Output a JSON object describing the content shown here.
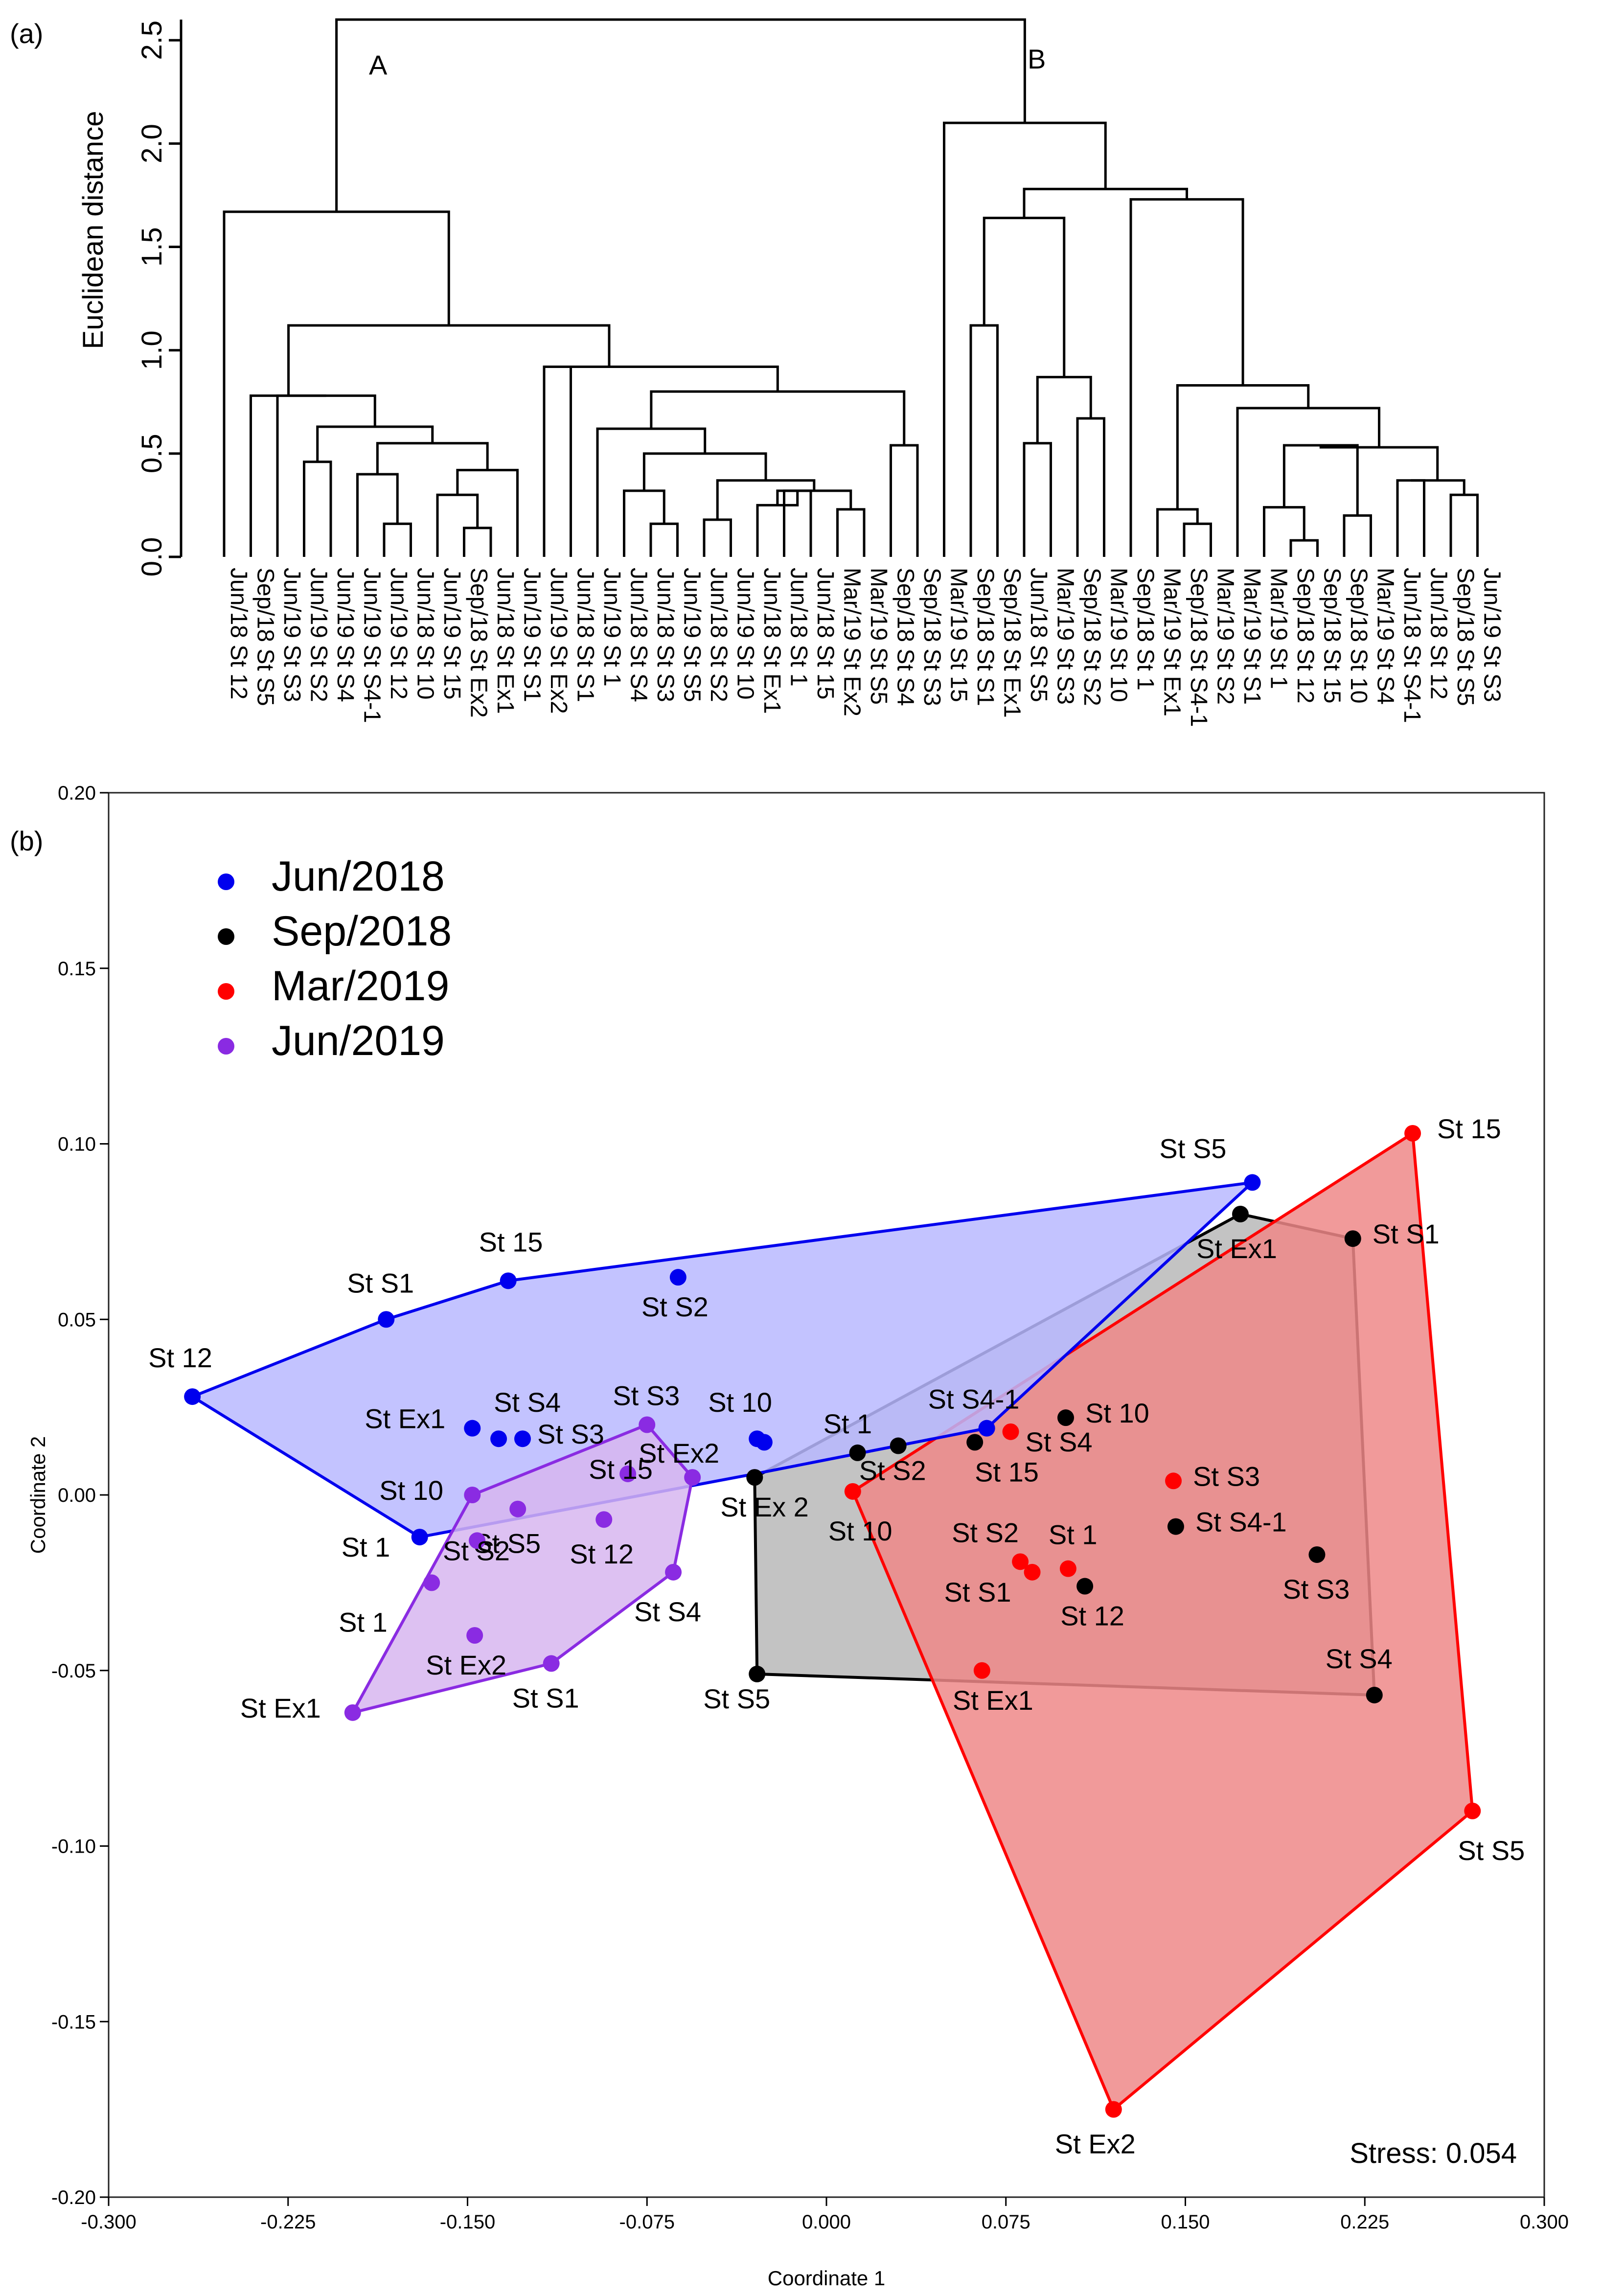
{
  "chart_data": [
    {
      "type": "dendrogram",
      "panel_label": "(a)",
      "ylabel": "Euclidean distance",
      "ylim": [
        0,
        2.6
      ],
      "y_ticks": [
        "0.0",
        "0.5",
        "1.0",
        "1.5",
        "2.0",
        "2.5"
      ],
      "y_tick_values": [
        0,
        0.5,
        1.0,
        1.5,
        2.0,
        2.5
      ],
      "cluster_labels": [
        "A",
        "B"
      ],
      "leaves": [
        "Jun/18 St 12",
        "Sep/18 St S5",
        "Jun/19 St S3",
        "Jun/19 St S2",
        "Jun/19 St S4",
        "Jun/19 St S4-1",
        "Jun/19 St 12",
        "Jun/18 St 10",
        "Jun/19 St 15",
        "Sep/18 St Ex2",
        "Jun/18 St Ex1",
        "Jun/19 St S1",
        "Jun/19 St Ex2",
        "Jun/18 St S1",
        "Jun/19 St 1",
        "Jun/18 St S4",
        "Jun/18 St S3",
        "Jun/19 St S5",
        "Jun/18 St S2",
        "Jun/19 St 10",
        "Jun/18 St Ex1",
        "Jun/18 St 1",
        "Jun/18 St 15",
        "Mar/19 St Ex2",
        "Mar/19 St S5",
        "Sep/18 St S4",
        "Sep/18 St S3",
        "Mar/19 St 15",
        "Sep/18 St S1",
        "Sep/18 St Ex1",
        "Jun/18 St S5",
        "Mar/19 St S3",
        "Sep/18 St S2",
        "Mar/19 St 10",
        "Sep/18 St 1",
        "Mar/19 St Ex1",
        "Sep/18 St S4-1",
        "Mar/19 St S2",
        "Mar/19 St S1",
        "Mar/19 St 1",
        "Sep/18 St 12",
        "Sep/18 St 15",
        "Sep/18 St 10",
        "Mar/19 St S4",
        "Jun/18 St S4-1"
      ],
      "merges": [
        {
          "a": "L6",
          "b": "L7",
          "h": 0.16
        },
        {
          "a": "L5",
          "b": "N1",
          "h": 0.4
        },
        {
          "a": "L9",
          "b": "L10",
          "h": 0.14
        },
        {
          "a": "L8",
          "b": "N3",
          "h": 0.3
        },
        {
          "a": "L7c",
          "b": "N4",
          "h": 0.42
        },
        {
          "a": "N2",
          "b": "N5",
          "h": 0.55
        },
        {
          "a": "L3",
          "b": "L4",
          "h": 0.46
        },
        {
          "a": "N7",
          "b": "N6",
          "h": 0.63
        },
        {
          "a": "L2",
          "b": "N8",
          "h": 0.78
        },
        {
          "a": "L1",
          "b": "N9",
          "h": 0.78
        },
        {
          "a": "L14",
          "b": "L15",
          "h": 0.16
        },
        {
          "a": "L13",
          "b": "N11",
          "h": 0.32
        },
        {
          "a": "L16",
          "b": "L17",
          "h": 0.18
        },
        {
          "a": "L19",
          "b": "L20",
          "h": 0.32
        },
        {
          "a": "L18",
          "b": "N14",
          "h": 0.25
        },
        {
          "a": "L21",
          "b": "L22",
          "h": 0.23
        },
        {
          "a": "N15",
          "b": "N16",
          "h": 0.32
        },
        {
          "a": "N13",
          "b": "N17",
          "h": 0.37
        },
        {
          "a": "N12",
          "b": "N18",
          "h": 0.5
        },
        {
          "a": "L12",
          "b": "N19",
          "h": 0.62
        },
        {
          "a": "L23",
          "b": "L24",
          "h": 0.54
        },
        {
          "a": "N20",
          "b": "N21",
          "h": 0.8
        },
        {
          "a": "N20b",
          "b": "N22",
          "h": 0.92
        },
        {
          "a": "L11",
          "b": "N23",
          "h": 0.92
        },
        {
          "a": "N10",
          "b": "N24",
          "h": 1.12
        },
        {
          "a": "L0",
          "b": "N25",
          "h": 1.67
        },
        {
          "a": "L26",
          "b": "L27",
          "h": 1.12
        },
        {
          "a": "L28",
          "b": "L29",
          "h": 0.55
        },
        {
          "a": "L30",
          "b": "L31",
          "h": 0.67
        },
        {
          "a": "N28",
          "b": "N29",
          "h": 0.87
        },
        {
          "a": "N27",
          "b": "N30",
          "h": 1.64
        },
        {
          "a": "L32",
          "b": "L33",
          "h": 1.73
        },
        {
          "a": "L34",
          "b": "L35",
          "h": 0.16
        },
        {
          "a": "L33b",
          "b": "N33",
          "h": 0.23
        },
        {
          "a": "L38",
          "b": "L39",
          "h": 0.08
        },
        {
          "a": "L37",
          "b": "N35",
          "h": 0.24
        },
        {
          "a": "L40",
          "b": "L41",
          "h": 0.2
        },
        {
          "a": "N36",
          "b": "N37",
          "h": 0.54
        },
        {
          "a": "L42",
          "b": "L43",
          "h": 0.37
        },
        {
          "a": "L45",
          "b": "L46",
          "h": 0.17
        },
        {
          "a": "L44",
          "b": "N40",
          "h": 0.3
        },
        {
          "a": "N39",
          "b": "N41",
          "h": 0.37
        },
        {
          "a": "N38",
          "b": "N42",
          "h": 0.53
        },
        {
          "a": "L36",
          "b": "N43",
          "h": 0.72
        },
        {
          "a": "N34",
          "b": "N44",
          "h": 0.83
        },
        {
          "a": "N32",
          "b": "N45",
          "h": 1.73
        },
        {
          "a": "N31",
          "b": "N46",
          "h": 1.78
        },
        {
          "a": "L25",
          "b": "N47",
          "h": 2.1
        },
        {
          "a": "A",
          "b": "B",
          "h": 2.6
        }
      ]
    },
    {
      "type": "scatter",
      "panel_label": "(b)",
      "xlabel": "Coordinate 1",
      "ylabel": "Coordinate 2",
      "xlim": [
        -0.3,
        0.3
      ],
      "ylim": [
        -0.2,
        0.2
      ],
      "x_ticks": [
        "-0.300",
        "-0.225",
        "-0.150",
        "-0.075",
        "0.000",
        "0.075",
        "0.150",
        "0.225",
        "0.300"
      ],
      "x_tick_values": [
        -0.3,
        -0.225,
        -0.15,
        -0.075,
        0,
        0.075,
        0.15,
        0.225,
        0.3
      ],
      "y_ticks": [
        "0.20",
        "0.15",
        "0.10",
        "0.05",
        "0.00",
        "-0.05",
        "-0.10",
        "-0.15",
        "-0.20"
      ],
      "y_tick_values": [
        0.2,
        0.15,
        0.1,
        0.05,
        0,
        -0.05,
        -0.1,
        -0.15,
        -0.2
      ],
      "annotation": "Stress: 0.054",
      "legend_position": "top-left",
      "series": [
        {
          "name": "Jun/2018",
          "color": "#0000ee",
          "fill": "#b8b8ff",
          "points": [
            {
              "label": "St 12",
              "x": -0.265,
              "y": 0.028
            },
            {
              "label": "St S1",
              "x": -0.184,
              "y": 0.05
            },
            {
              "label": "St 15",
              "x": -0.133,
              "y": 0.061
            },
            {
              "label": "St S2",
              "x": -0.062,
              "y": 0.062
            },
            {
              "label": "St Ex1",
              "x": -0.148,
              "y": 0.019
            },
            {
              "label": "St S4",
              "x": -0.137,
              "y": 0.016
            },
            {
              "label": "St S3",
              "x": -0.127,
              "y": 0.016
            },
            {
              "label": "St 10",
              "x": -0.029,
              "y": 0.016
            },
            {
              "label": "",
              "x": -0.026,
              "y": 0.015
            },
            {
              "label": "St 1",
              "x": -0.17,
              "y": -0.012
            },
            {
              "label": "St S4-1",
              "x": 0.067,
              "y": 0.019
            },
            {
              "label": "St S5",
              "x": 0.178,
              "y": 0.089
            }
          ],
          "hull": [
            [
              -0.265,
              0.028
            ],
            [
              -0.184,
              0.05
            ],
            [
              -0.133,
              0.061
            ],
            [
              0.178,
              0.089
            ],
            [
              0.067,
              0.019
            ],
            [
              -0.03,
              0.006
            ],
            [
              -0.17,
              -0.012
            ]
          ]
        },
        {
          "name": "Sep/2018",
          "color": "#000000",
          "fill": "#b9b9b9",
          "points": [
            {
              "label": "St Ex1",
              "x": 0.173,
              "y": 0.08
            },
            {
              "label": "St S1",
              "x": 0.22,
              "y": 0.073
            },
            {
              "label": "St 10",
              "x": 0.1,
              "y": 0.022
            },
            {
              "label": "St S4-1",
              "x": 0.146,
              "y": -0.009
            },
            {
              "label": "St S3",
              "x": 0.205,
              "y": -0.017
            },
            {
              "label": "St 12",
              "x": 0.108,
              "y": -0.026
            },
            {
              "label": "St S4",
              "x": 0.229,
              "y": -0.057
            },
            {
              "label": "St 1",
              "x": 0.013,
              "y": 0.012
            },
            {
              "label": "St S2",
              "x": 0.03,
              "y": 0.014
            },
            {
              "label": "St 15",
              "x": 0.062,
              "y": 0.015
            },
            {
              "label": "St Ex 2",
              "x": -0.03,
              "y": 0.005
            },
            {
              "label": "St S5",
              "x": -0.029,
              "y": -0.051
            }
          ],
          "hull": [
            [
              -0.03,
              0.005
            ],
            [
              0.173,
              0.08
            ],
            [
              0.22,
              0.073
            ],
            [
              0.229,
              -0.057
            ],
            [
              -0.029,
              -0.051
            ]
          ]
        },
        {
          "name": "Mar/2019",
          "color": "#ff0000",
          "fill": "#ee8888",
          "points": [
            {
              "label": "St 15",
              "x": 0.245,
              "y": 0.103
            },
            {
              "label": "St S4",
              "x": 0.077,
              "y": 0.018
            },
            {
              "label": "St S3",
              "x": 0.145,
              "y": 0.004
            },
            {
              "label": "St 10",
              "x": 0.011,
              "y": 0.001
            },
            {
              "label": "St S2",
              "x": 0.081,
              "y": -0.019
            },
            {
              "label": "St S1",
              "x": 0.086,
              "y": -0.022
            },
            {
              "label": "St 1",
              "x": 0.101,
              "y": -0.021
            },
            {
              "label": "St Ex1",
              "x": 0.065,
              "y": -0.05
            },
            {
              "label": "St S5",
              "x": 0.27,
              "y": -0.09
            },
            {
              "label": "St Ex2",
              "x": 0.12,
              "y": -0.175
            }
          ],
          "hull": [
            [
              0.011,
              0.001
            ],
            [
              0.245,
              0.103
            ],
            [
              0.27,
              -0.09
            ],
            [
              0.12,
              -0.175
            ]
          ]
        },
        {
          "name": "Jun/2019",
          "color": "#8a2be2",
          "fill": "#d7b6f0",
          "points": [
            {
              "label": "St S3",
              "x": -0.075,
              "y": 0.02
            },
            {
              "label": "St Ex2",
              "x": -0.056,
              "y": 0.005
            },
            {
              "label": "St 15",
              "x": -0.083,
              "y": 0.006
            },
            {
              "label": "St 10",
              "x": -0.148,
              "y": 0.0
            },
            {
              "label": "St S5",
              "x": -0.129,
              "y": -0.004
            },
            {
              "label": "St S2",
              "x": -0.146,
              "y": -0.013
            },
            {
              "label": "St 12",
              "x": -0.093,
              "y": -0.007
            },
            {
              "label": "St 1",
              "x": -0.165,
              "y": -0.025
            },
            {
              "label": "St S4",
              "x": -0.064,
              "y": -0.022
            },
            {
              "label": "St Ex2",
              "x": -0.147,
              "y": -0.04
            },
            {
              "label": "St S1",
              "x": -0.115,
              "y": -0.048
            },
            {
              "label": "St Ex1",
              "x": -0.198,
              "y": -0.062
            }
          ],
          "hull": [
            [
              -0.148,
              0.0
            ],
            [
              -0.075,
              0.02
            ],
            [
              -0.056,
              0.005
            ],
            [
              -0.064,
              -0.022
            ],
            [
              -0.115,
              -0.048
            ],
            [
              -0.198,
              -0.062
            ]
          ]
        }
      ]
    }
  ]
}
